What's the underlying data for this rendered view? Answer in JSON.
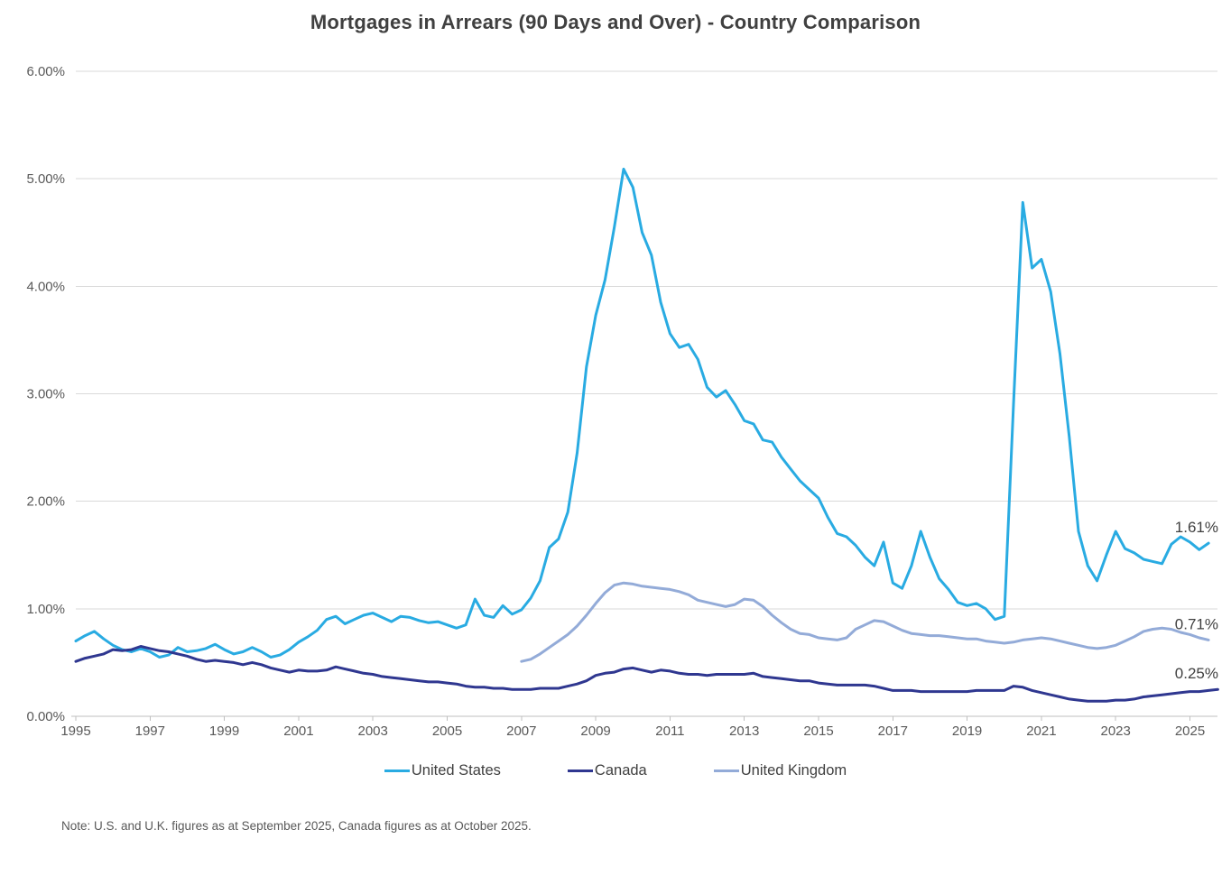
{
  "chart": {
    "title": "Mortgages in Arrears (90 Days and Over) - Country Comparison",
    "note": "Note: U.S. and U.K. figures as at September 2025, Canada figures as at October 2025."
  },
  "chart_data": {
    "type": "line",
    "title": "Mortgages in Arrears (90 Days and Over) - Country Comparison",
    "xlabel": "",
    "ylabel": "",
    "grid": true,
    "legend_position": "bottom",
    "x_axis": {
      "ticks": [
        1995,
        1997,
        1999,
        2001,
        2003,
        2005,
        2007,
        2009,
        2011,
        2013,
        2015,
        2017,
        2019,
        2021,
        2023,
        2025
      ],
      "min": 1995,
      "max": 2026
    },
    "y_axis": {
      "min": 0,
      "max": 6,
      "tick_step": 1,
      "tick_labels": [
        "0.00%",
        "1.00%",
        "2.00%",
        "3.00%",
        "4.00%",
        "5.00%",
        "6.00%"
      ]
    },
    "colors": {
      "gridline": "#D9D9D9",
      "axis_line": "#BFBFBF",
      "axis_text": "#595959",
      "title_text": "#404040",
      "end_label_text": "#404040"
    },
    "series": [
      {
        "name": "United States",
        "color": "#29ABE2",
        "end_label": "1.61%",
        "x_start": 1995.0,
        "x_step": 0.25,
        "values": [
          0.7,
          0.75,
          0.79,
          0.72,
          0.66,
          0.62,
          0.6,
          0.63,
          0.6,
          0.55,
          0.57,
          0.64,
          0.6,
          0.61,
          0.63,
          0.67,
          0.62,
          0.58,
          0.6,
          0.64,
          0.6,
          0.55,
          0.57,
          0.62,
          0.69,
          0.74,
          0.8,
          0.9,
          0.93,
          0.86,
          0.9,
          0.94,
          0.96,
          0.92,
          0.88,
          0.93,
          0.92,
          0.89,
          0.87,
          0.88,
          0.85,
          0.82,
          0.85,
          1.09,
          0.94,
          0.92,
          1.03,
          0.95,
          0.99,
          1.1,
          1.26,
          1.57,
          1.65,
          1.9,
          2.45,
          3.25,
          3.73,
          4.06,
          4.55,
          5.09,
          4.92,
          4.5,
          4.29,
          3.85,
          3.56,
          3.43,
          3.46,
          3.32,
          3.06,
          2.97,
          3.03,
          2.9,
          2.75,
          2.72,
          2.57,
          2.55,
          2.41,
          2.3,
          2.19,
          2.11,
          2.03,
          1.85,
          1.7,
          1.67,
          1.59,
          1.48,
          1.4,
          1.62,
          1.24,
          1.19,
          1.4,
          1.72,
          1.48,
          1.28,
          1.18,
          1.06,
          1.03,
          1.05,
          1.0,
          0.9,
          0.93,
          2.9,
          4.78,
          4.17,
          4.25,
          3.95,
          3.37,
          2.6,
          1.72,
          1.4,
          1.26,
          1.5,
          1.72,
          1.56,
          1.52,
          1.46,
          1.44,
          1.42,
          1.6,
          1.67,
          1.62,
          1.55,
          1.61
        ]
      },
      {
        "name": "Canada",
        "color": "#2F3790",
        "end_label": "0.25%",
        "x_start": 1995.0,
        "x_step": 0.25,
        "values": [
          0.51,
          0.54,
          0.56,
          0.58,
          0.62,
          0.61,
          0.62,
          0.65,
          0.63,
          0.61,
          0.6,
          0.58,
          0.56,
          0.53,
          0.51,
          0.52,
          0.51,
          0.5,
          0.48,
          0.5,
          0.48,
          0.45,
          0.43,
          0.41,
          0.43,
          0.42,
          0.42,
          0.43,
          0.46,
          0.44,
          0.42,
          0.4,
          0.39,
          0.37,
          0.36,
          0.35,
          0.34,
          0.33,
          0.32,
          0.32,
          0.31,
          0.3,
          0.28,
          0.27,
          0.27,
          0.26,
          0.26,
          0.25,
          0.25,
          0.25,
          0.26,
          0.26,
          0.26,
          0.28,
          0.3,
          0.33,
          0.38,
          0.4,
          0.41,
          0.44,
          0.45,
          0.43,
          0.41,
          0.43,
          0.42,
          0.4,
          0.39,
          0.39,
          0.38,
          0.39,
          0.39,
          0.39,
          0.39,
          0.4,
          0.37,
          0.36,
          0.35,
          0.34,
          0.33,
          0.33,
          0.31,
          0.3,
          0.29,
          0.29,
          0.29,
          0.29,
          0.28,
          0.26,
          0.24,
          0.24,
          0.24,
          0.23,
          0.23,
          0.23,
          0.23,
          0.23,
          0.23,
          0.24,
          0.24,
          0.24,
          0.24,
          0.28,
          0.27,
          0.24,
          0.22,
          0.2,
          0.18,
          0.16,
          0.15,
          0.14,
          0.14,
          0.14,
          0.15,
          0.15,
          0.16,
          0.18,
          0.19,
          0.2,
          0.21,
          0.22,
          0.23,
          0.23,
          0.24,
          0.25
        ]
      },
      {
        "name": "United Kingdom",
        "color": "#93ABD8",
        "end_label": "0.71%",
        "x_start": 2007.0,
        "x_step": 0.25,
        "values": [
          0.51,
          0.53,
          0.58,
          0.64,
          0.7,
          0.76,
          0.84,
          0.94,
          1.05,
          1.15,
          1.22,
          1.24,
          1.23,
          1.21,
          1.2,
          1.19,
          1.18,
          1.16,
          1.13,
          1.08,
          1.06,
          1.04,
          1.02,
          1.04,
          1.09,
          1.08,
          1.02,
          0.94,
          0.87,
          0.81,
          0.77,
          0.76,
          0.73,
          0.72,
          0.71,
          0.73,
          0.81,
          0.85,
          0.89,
          0.88,
          0.84,
          0.8,
          0.77,
          0.76,
          0.75,
          0.75,
          0.74,
          0.73,
          0.72,
          0.72,
          0.7,
          0.69,
          0.68,
          0.69,
          0.71,
          0.72,
          0.73,
          0.72,
          0.7,
          0.68,
          0.66,
          0.64,
          0.63,
          0.64,
          0.66,
          0.7,
          0.74,
          0.79,
          0.81,
          0.82,
          0.81,
          0.78,
          0.76,
          0.73,
          0.71
        ]
      }
    ]
  }
}
